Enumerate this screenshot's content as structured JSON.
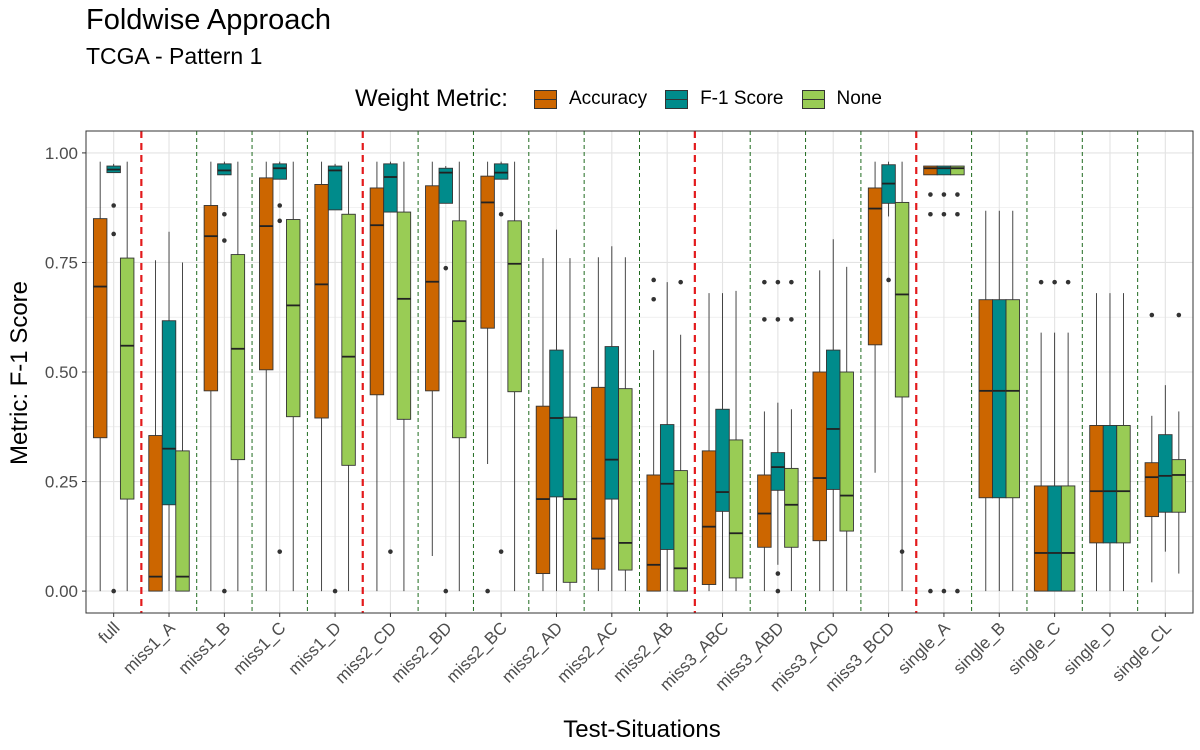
{
  "chart_data": {
    "type": "boxplot",
    "title": "Foldwise Approach",
    "subtitle": "TCGA - Pattern 1",
    "xlabel": "Test-Situations",
    "ylabel": "Metric: F-1 Score",
    "ylim": [
      -0.05,
      1.05
    ],
    "yticks": [
      "0.00",
      "0.25",
      "0.50",
      "0.75",
      "1.00"
    ],
    "grid": true,
    "legend_title": "Weight Metric:",
    "legend_position": "top",
    "series": [
      {
        "name": "Accuracy",
        "color": "#CC6600"
      },
      {
        "name": "F-1 Score",
        "color": "#008B8B"
      },
      {
        "name": "None",
        "color": "#99CC55"
      }
    ],
    "categories": [
      "full",
      "miss1_A",
      "miss1_B",
      "miss1_C",
      "miss1_D",
      "miss2_CD",
      "miss2_BD",
      "miss2_BC",
      "miss2_AD",
      "miss2_AC",
      "miss2_AB",
      "miss3_ABC",
      "miss3_ABD",
      "miss3_ACD",
      "miss3_BCD",
      "single_A",
      "single_B",
      "single_C",
      "single_D",
      "single_CL"
    ],
    "red_separators_after": [
      "full",
      "miss1_D",
      "miss2_AB",
      "miss3_BCD"
    ],
    "boxes": [
      [
        {
          "min": 0.0,
          "q1": 0.35,
          "median": 0.695,
          "q3": 0.85,
          "max": 0.98,
          "outliers": []
        },
        {
          "min": 0.955,
          "q1": 0.955,
          "median": 0.962,
          "q3": 0.97,
          "max": 0.975,
          "outliers": [
            0.88,
            0.815,
            0.0
          ]
        },
        {
          "min": 0.0,
          "q1": 0.21,
          "median": 0.56,
          "q3": 0.76,
          "max": 0.98,
          "outliers": []
        }
      ],
      [
        {
          "min": 0.0,
          "q1": 0.0,
          "median": 0.033,
          "q3": 0.355,
          "max": 0.755,
          "outliers": []
        },
        {
          "min": 0.0,
          "q1": 0.197,
          "median": 0.325,
          "q3": 0.617,
          "max": 0.82,
          "outliers": []
        },
        {
          "min": 0.0,
          "q1": 0.0,
          "median": 0.033,
          "q3": 0.32,
          "max": 0.75,
          "outliers": []
        }
      ],
      [
        {
          "min": 0.0,
          "q1": 0.457,
          "median": 0.81,
          "q3": 0.88,
          "max": 0.98,
          "outliers": []
        },
        {
          "min": 0.95,
          "q1": 0.95,
          "median": 0.96,
          "q3": 0.975,
          "max": 0.98,
          "outliers": [
            0.86,
            0.8,
            0.0
          ]
        },
        {
          "min": 0.0,
          "q1": 0.3,
          "median": 0.553,
          "q3": 0.768,
          "max": 0.98,
          "outliers": []
        }
      ],
      [
        {
          "min": 0.0,
          "q1": 0.505,
          "median": 0.833,
          "q3": 0.943,
          "max": 0.98,
          "outliers": []
        },
        {
          "min": 0.94,
          "q1": 0.94,
          "median": 0.965,
          "q3": 0.975,
          "max": 0.98,
          "outliers": [
            0.88,
            0.845,
            0.09
          ]
        },
        {
          "min": 0.0,
          "q1": 0.398,
          "median": 0.652,
          "q3": 0.848,
          "max": 0.98,
          "outliers": []
        }
      ],
      [
        {
          "min": 0.0,
          "q1": 0.395,
          "median": 0.7,
          "q3": 0.928,
          "max": 0.98,
          "outliers": []
        },
        {
          "min": 0.87,
          "q1": 0.87,
          "median": 0.96,
          "q3": 0.97,
          "max": 0.975,
          "outliers": [
            0.0
          ]
        },
        {
          "min": 0.0,
          "q1": 0.287,
          "median": 0.535,
          "q3": 0.86,
          "max": 0.98,
          "outliers": []
        }
      ],
      [
        {
          "min": 0.0,
          "q1": 0.448,
          "median": 0.835,
          "q3": 0.92,
          "max": 0.98,
          "outliers": []
        },
        {
          "min": 0.865,
          "q1": 0.865,
          "median": 0.945,
          "q3": 0.975,
          "max": 0.98,
          "outliers": [
            0.09
          ]
        },
        {
          "min": 0.0,
          "q1": 0.392,
          "median": 0.667,
          "q3": 0.865,
          "max": 0.98,
          "outliers": []
        }
      ],
      [
        {
          "min": 0.08,
          "q1": 0.457,
          "median": 0.706,
          "q3": 0.925,
          "max": 0.98,
          "outliers": []
        },
        {
          "min": 0.885,
          "q1": 0.885,
          "median": 0.955,
          "q3": 0.965,
          "max": 0.97,
          "outliers": [
            0.737,
            0.0
          ]
        },
        {
          "min": 0.0,
          "q1": 0.35,
          "median": 0.616,
          "q3": 0.845,
          "max": 0.98,
          "outliers": []
        }
      ],
      [
        {
          "min": 0.29,
          "q1": 0.6,
          "median": 0.887,
          "q3": 0.947,
          "max": 0.98,
          "outliers": [
            0.0
          ]
        },
        {
          "min": 0.94,
          "q1": 0.94,
          "median": 0.955,
          "q3": 0.975,
          "max": 0.98,
          "outliers": [
            0.86,
            0.09
          ]
        },
        {
          "min": 0.0,
          "q1": 0.455,
          "median": 0.747,
          "q3": 0.845,
          "max": 0.98,
          "outliers": []
        }
      ],
      [
        {
          "min": 0.0,
          "q1": 0.04,
          "median": 0.21,
          "q3": 0.422,
          "max": 0.76,
          "outliers": []
        },
        {
          "min": 0.0,
          "q1": 0.215,
          "median": 0.395,
          "q3": 0.55,
          "max": 0.825,
          "outliers": []
        },
        {
          "min": 0.0,
          "q1": 0.02,
          "median": 0.21,
          "q3": 0.397,
          "max": 0.76,
          "outliers": []
        }
      ],
      [
        {
          "min": 0.0,
          "q1": 0.05,
          "median": 0.12,
          "q3": 0.465,
          "max": 0.762,
          "outliers": []
        },
        {
          "min": 0.0,
          "q1": 0.21,
          "median": 0.3,
          "q3": 0.558,
          "max": 0.787,
          "outliers": []
        },
        {
          "min": 0.0,
          "q1": 0.048,
          "median": 0.11,
          "q3": 0.462,
          "max": 0.762,
          "outliers": []
        }
      ],
      [
        {
          "min": 0.0,
          "q1": 0.0,
          "median": 0.06,
          "q3": 0.265,
          "max": 0.55,
          "outliers": [
            0.71,
            0.666
          ]
        },
        {
          "min": 0.0,
          "q1": 0.095,
          "median": 0.245,
          "q3": 0.38,
          "max": 0.705,
          "outliers": []
        },
        {
          "min": 0.0,
          "q1": 0.0,
          "median": 0.052,
          "q3": 0.275,
          "max": 0.585,
          "outliers": [
            0.705
          ]
        }
      ],
      [
        {
          "min": 0.0,
          "q1": 0.015,
          "median": 0.147,
          "q3": 0.32,
          "max": 0.68,
          "outliers": []
        },
        {
          "min": 0.0,
          "q1": 0.182,
          "median": 0.226,
          "q3": 0.415,
          "max": 0.68,
          "outliers": []
        },
        {
          "min": 0.0,
          "q1": 0.03,
          "median": 0.132,
          "q3": 0.345,
          "max": 0.685,
          "outliers": []
        }
      ],
      [
        {
          "min": 0.0,
          "q1": 0.1,
          "median": 0.177,
          "q3": 0.265,
          "max": 0.41,
          "outliers": [
            0.705,
            0.62
          ]
        },
        {
          "min": 0.06,
          "q1": 0.23,
          "median": 0.283,
          "q3": 0.316,
          "max": 0.43,
          "outliers": [
            0.705,
            0.62,
            0.04,
            0.0
          ]
        },
        {
          "min": 0.0,
          "q1": 0.1,
          "median": 0.197,
          "q3": 0.28,
          "max": 0.415,
          "outliers": [
            0.705,
            0.62
          ]
        }
      ],
      [
        {
          "min": 0.0,
          "q1": 0.115,
          "median": 0.258,
          "q3": 0.5,
          "max": 0.732,
          "outliers": []
        },
        {
          "min": 0.0,
          "q1": 0.232,
          "median": 0.37,
          "q3": 0.55,
          "max": 0.803,
          "outliers": []
        },
        {
          "min": 0.0,
          "q1": 0.137,
          "median": 0.218,
          "q3": 0.5,
          "max": 0.74,
          "outliers": []
        }
      ],
      [
        {
          "min": 0.27,
          "q1": 0.562,
          "median": 0.873,
          "q3": 0.92,
          "max": 0.98,
          "outliers": []
        },
        {
          "min": 0.855,
          "q1": 0.885,
          "median": 0.93,
          "q3": 0.973,
          "max": 0.98,
          "outliers": [
            0.71
          ]
        },
        {
          "min": 0.0,
          "q1": 0.443,
          "median": 0.677,
          "q3": 0.887,
          "max": 0.98,
          "outliers": [
            0.09
          ]
        }
      ],
      [
        {
          "min": 0.95,
          "q1": 0.95,
          "median": 0.965,
          "q3": 0.97,
          "max": 0.97,
          "outliers": [
            0.905,
            0.86,
            0.0
          ]
        },
        {
          "min": 0.95,
          "q1": 0.95,
          "median": 0.965,
          "q3": 0.97,
          "max": 0.97,
          "outliers": [
            0.905,
            0.86,
            0.0
          ]
        },
        {
          "min": 0.95,
          "q1": 0.95,
          "median": 0.965,
          "q3": 0.97,
          "max": 0.97,
          "outliers": [
            0.905,
            0.86,
            0.0
          ]
        }
      ],
      [
        {
          "min": 0.0,
          "q1": 0.213,
          "median": 0.457,
          "q3": 0.665,
          "max": 0.868,
          "outliers": []
        },
        {
          "min": 0.0,
          "q1": 0.213,
          "median": 0.457,
          "q3": 0.665,
          "max": 0.868,
          "outliers": []
        },
        {
          "min": 0.0,
          "q1": 0.213,
          "median": 0.457,
          "q3": 0.665,
          "max": 0.868,
          "outliers": []
        }
      ],
      [
        {
          "min": 0.0,
          "q1": 0.0,
          "median": 0.087,
          "q3": 0.24,
          "max": 0.59,
          "outliers": [
            0.705
          ]
        },
        {
          "min": 0.0,
          "q1": 0.0,
          "median": 0.087,
          "q3": 0.24,
          "max": 0.59,
          "outliers": [
            0.705
          ]
        },
        {
          "min": 0.0,
          "q1": 0.0,
          "median": 0.087,
          "q3": 0.24,
          "max": 0.59,
          "outliers": [
            0.705
          ]
        }
      ],
      [
        {
          "min": 0.0,
          "q1": 0.11,
          "median": 0.228,
          "q3": 0.378,
          "max": 0.68,
          "outliers": []
        },
        {
          "min": 0.0,
          "q1": 0.11,
          "median": 0.228,
          "q3": 0.378,
          "max": 0.68,
          "outliers": []
        },
        {
          "min": 0.0,
          "q1": 0.11,
          "median": 0.228,
          "q3": 0.378,
          "max": 0.68,
          "outliers": []
        }
      ],
      [
        {
          "min": 0.02,
          "q1": 0.17,
          "median": 0.26,
          "q3": 0.293,
          "max": 0.4,
          "outliers": [
            0.63
          ]
        },
        {
          "min": 0.09,
          "q1": 0.18,
          "median": 0.263,
          "q3": 0.357,
          "max": 0.47,
          "outliers": []
        },
        {
          "min": 0.04,
          "q1": 0.18,
          "median": 0.265,
          "q3": 0.3,
          "max": 0.41,
          "outliers": [
            0.63
          ]
        }
      ]
    ]
  }
}
